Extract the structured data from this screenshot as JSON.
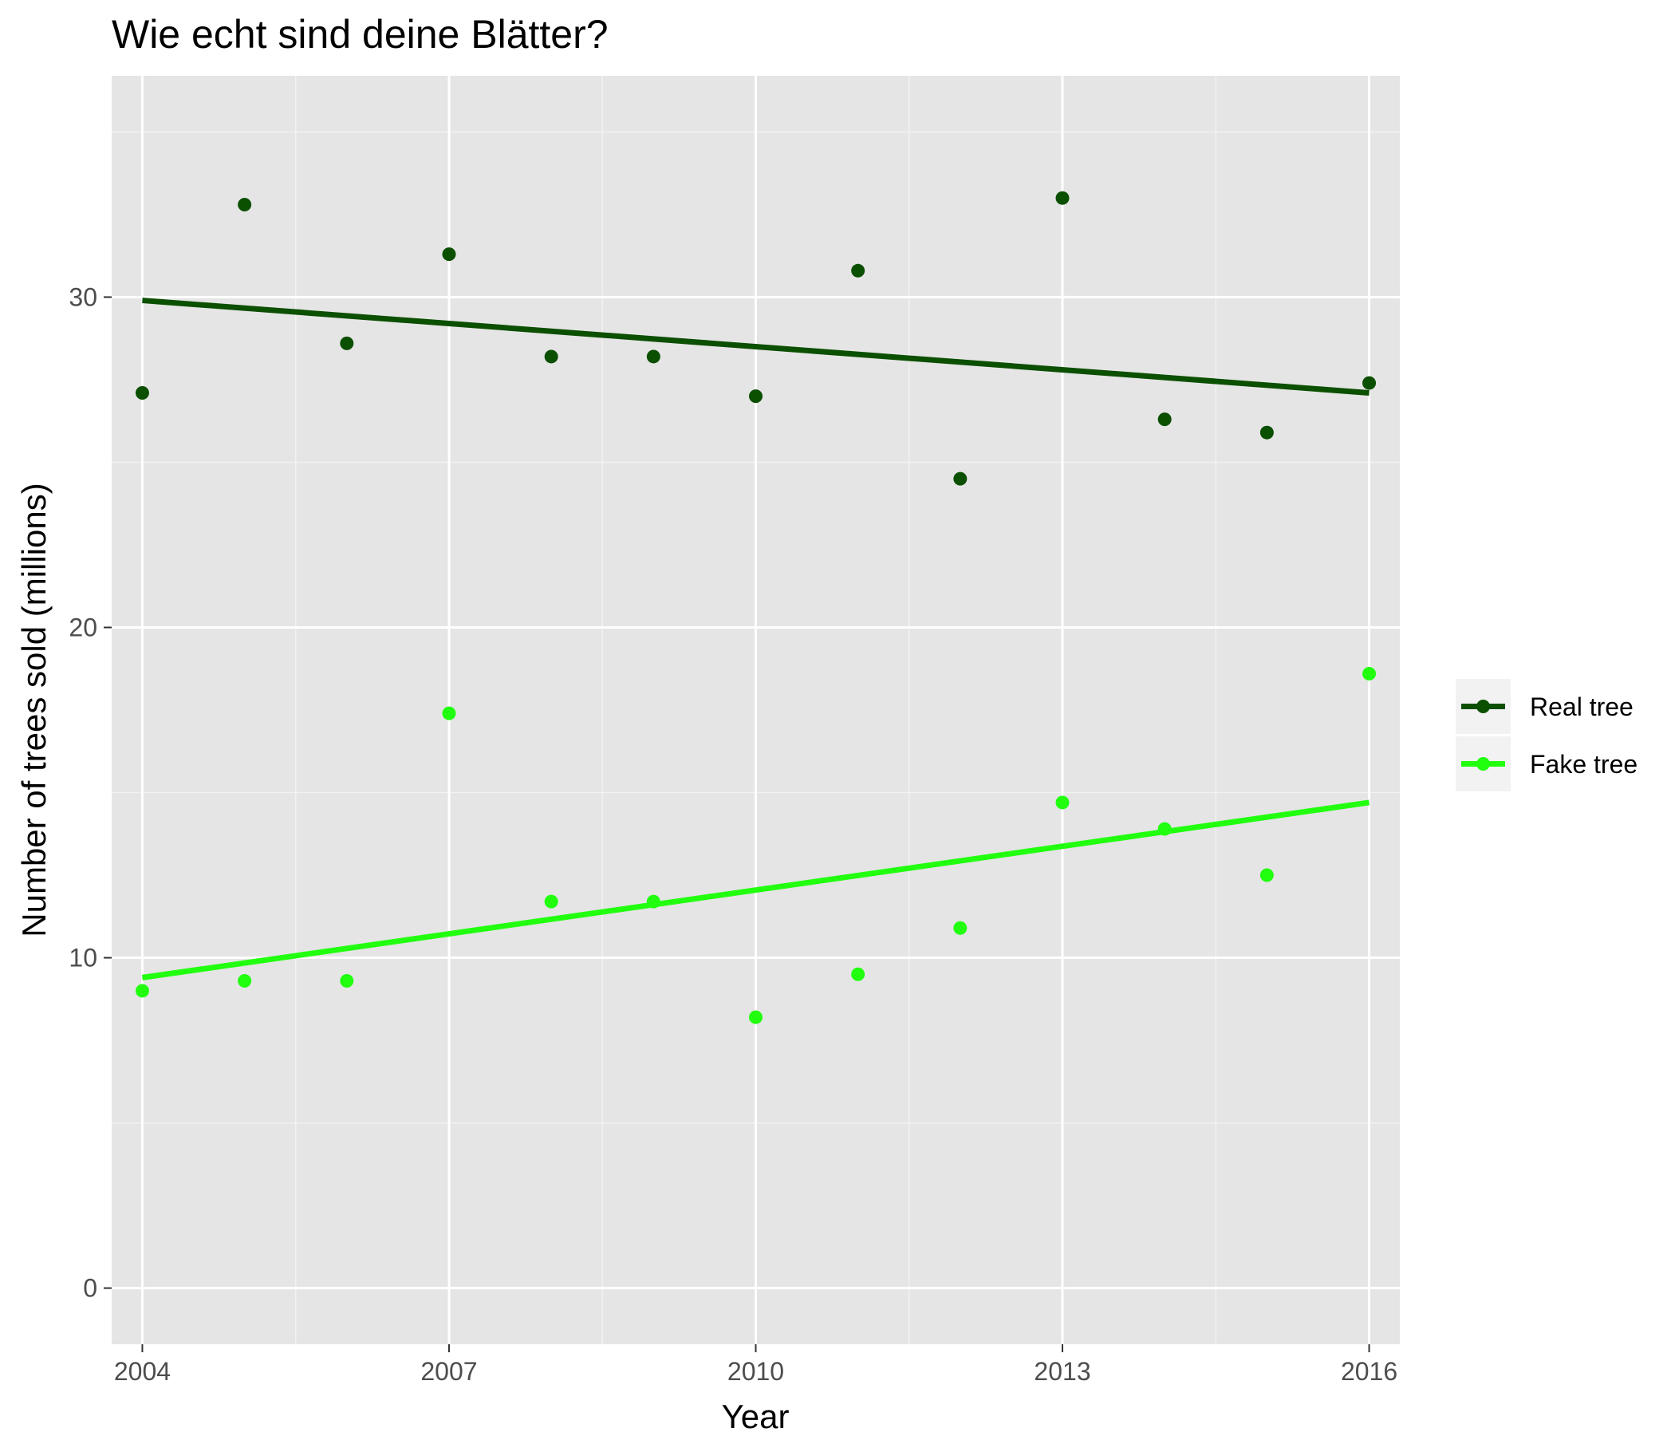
{
  "chart_data": {
    "type": "scatter",
    "title": "Wie echt sind deine Blätter?",
    "xlabel": "Year",
    "ylabel": "Number of trees sold (millions)",
    "x_ticks": [
      "2004",
      "2007",
      "2010",
      "2013",
      "2016"
    ],
    "y_ticks": [
      "0",
      "10",
      "20",
      "30"
    ],
    "xlim": [
      2003.7,
      2016.3
    ],
    "ylim": [
      -1.7,
      36.7
    ],
    "grid": true,
    "legend_position": "right",
    "x": [
      2004,
      2005,
      2006,
      2007,
      2008,
      2009,
      2010,
      2011,
      2012,
      2013,
      2014,
      2015,
      2016
    ],
    "series": [
      {
        "name": "Real tree",
        "color": "#0b4f00",
        "values": [
          27.1,
          32.8,
          28.6,
          31.3,
          28.2,
          28.2,
          27.0,
          30.8,
          24.5,
          33.0,
          26.3,
          25.9,
          27.4
        ],
        "trend": [
          29.9,
          27.1
        ]
      },
      {
        "name": "Fake tree",
        "color": "#21ff0f",
        "values": [
          9.0,
          9.3,
          9.3,
          17.4,
          11.7,
          11.7,
          8.2,
          9.5,
          10.9,
          14.7,
          13.9,
          12.5,
          18.6
        ],
        "trend": [
          9.4,
          14.7
        ]
      }
    ]
  }
}
